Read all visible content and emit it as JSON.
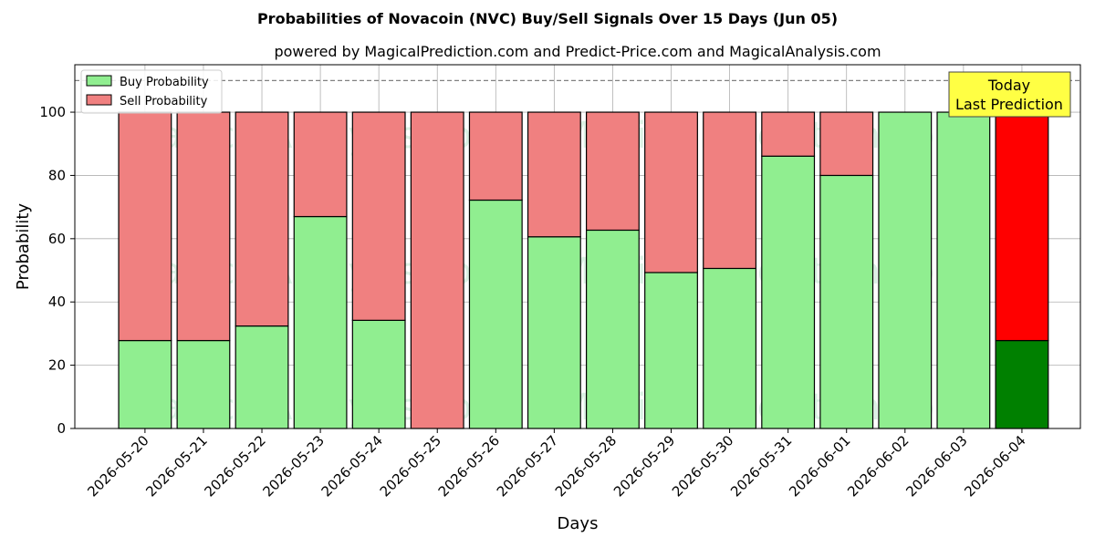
{
  "chart_data": {
    "type": "bar",
    "stacked": true,
    "title": "Probabilities of Novacoin (NVC) Buy/Sell Signals Over 15 Days (Jun 05)",
    "subtitle": "powered by MagicalPrediction.com and Predict-Price.com and MagicalAnalysis.com",
    "xlabel": "Days",
    "ylabel": "Probability",
    "ylim": [
      0,
      115
    ],
    "yticks": [
      0,
      20,
      40,
      60,
      80,
      100
    ],
    "grid": true,
    "legend_position": "top-left",
    "reference_line": 110,
    "categories": [
      "2026-05-20",
      "2026-05-21",
      "2026-05-22",
      "2026-05-23",
      "2026-05-24",
      "2026-05-25",
      "2026-05-26",
      "2026-05-27",
      "2026-05-28",
      "2026-05-29",
      "2026-05-30",
      "2026-05-31",
      "2026-06-01",
      "2026-06-02",
      "2026-06-03",
      "2026-06-04"
    ],
    "series": [
      {
        "name": "Buy Probability",
        "color": "#90ee90",
        "highlight_color": "#008000",
        "values": [
          27.8,
          27.8,
          32.4,
          67.0,
          34.2,
          0.0,
          72.2,
          60.6,
          62.7,
          49.3,
          50.6,
          86.1,
          80.0,
          100.0,
          100.0,
          27.8
        ]
      },
      {
        "name": "Sell Probability",
        "color": "#f08080",
        "highlight_color": "#ff0000",
        "values": [
          72.2,
          72.2,
          67.6,
          33.0,
          65.8,
          100.0,
          27.8,
          39.4,
          37.3,
          50.7,
          49.4,
          13.9,
          20.0,
          0.0,
          0.0,
          72.2
        ]
      }
    ],
    "highlight_index": 15,
    "annotation": {
      "line1": "Today",
      "line2": "Last Prediction",
      "color": "#ffff44"
    },
    "watermarks": [
      "MagicalAnalysis.com",
      "MagicalPrediction.com"
    ]
  }
}
